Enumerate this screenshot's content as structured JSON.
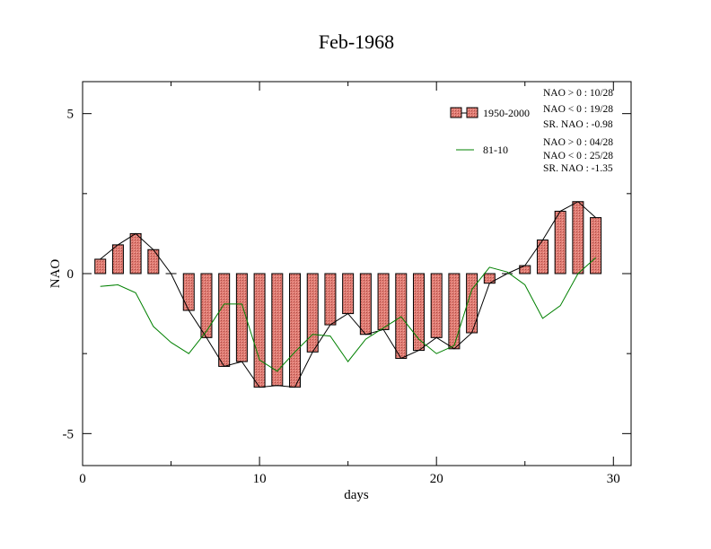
{
  "chart_data": {
    "type": "bar",
    "title": "Feb-1968",
    "xlabel": "days",
    "ylabel": "NAO",
    "xlim": [
      0,
      31
    ],
    "ylim": [
      -6,
      6
    ],
    "x_ticks": [
      0,
      10,
      20,
      30
    ],
    "y_ticks": [
      -5,
      0,
      5
    ],
    "x_tick_labels": [
      "0",
      "10",
      "20",
      "30"
    ],
    "y_tick_labels": [
      "-5",
      "0",
      "5"
    ],
    "grid": false,
    "legend_position": "top-right",
    "x": [
      1,
      2,
      3,
      4,
      5,
      6,
      7,
      8,
      9,
      10,
      11,
      12,
      13,
      14,
      15,
      16,
      17,
      18,
      19,
      20,
      21,
      22,
      23,
      24,
      25,
      26,
      27,
      28,
      29
    ],
    "series": [
      {
        "name": "1950-2000",
        "style": "bars",
        "color": "#e07b72",
        "values": [
          0.45,
          0.9,
          1.25,
          0.75,
          0.0,
          -1.15,
          -2.0,
          -2.9,
          -2.75,
          -3.55,
          -3.5,
          -3.55,
          -2.45,
          -1.6,
          -1.25,
          -1.9,
          -1.75,
          -2.65,
          -2.4,
          -2.0,
          -2.35,
          -1.85,
          -0.3,
          0.0,
          0.25,
          1.05,
          1.95,
          2.25,
          1.75
        ]
      },
      {
        "name": "81-10",
        "style": "line",
        "color": "#008000",
        "values": [
          -0.4,
          -0.35,
          -0.6,
          -1.65,
          -2.15,
          -2.5,
          -1.8,
          -0.95,
          -0.95,
          -2.7,
          -3.05,
          -2.45,
          -1.9,
          -1.95,
          -2.75,
          -2.05,
          -1.7,
          -1.35,
          -2.05,
          -2.5,
          -2.25,
          -0.5,
          0.2,
          0.05,
          -0.35,
          -1.4,
          -1.0,
          0.0,
          0.5
        ]
      }
    ],
    "stats": {
      "1950-2000": [
        "NAO > 0 :  10/28",
        "NAO < 0 :  19/28",
        "SR. NAO : -0.98"
      ],
      "81-10": [
        "NAO > 0 :  04/28",
        "NAO < 0 :  25/28",
        "SR. NAO : -1.35"
      ]
    }
  }
}
